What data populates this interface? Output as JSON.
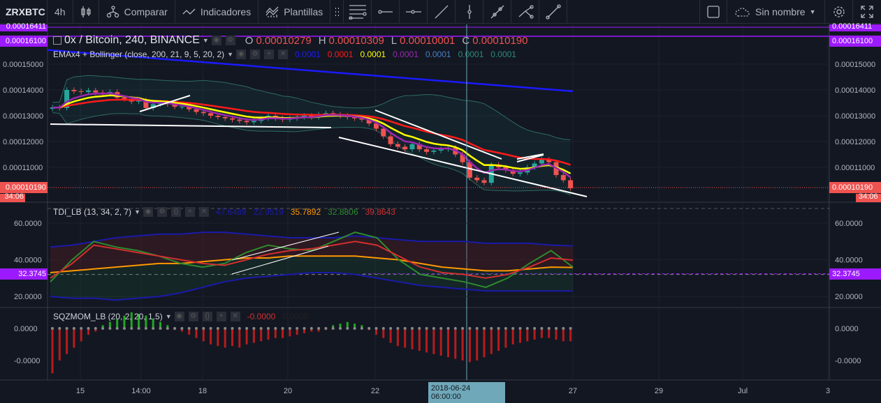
{
  "toolbar": {
    "symbol": "ZRXBTC",
    "interval": "4h",
    "compare": "Comparar",
    "indicators": "Indicadores",
    "templates": "Plantillas",
    "layout_name": "Sin nombre"
  },
  "main_legend": {
    "title": "0x / Bitcoin, 240, BINANCE",
    "o_label": "O",
    "o": "0.00010279",
    "h_label": "H",
    "h": "0.00010309",
    "l_label": "L",
    "l": "0.00010001",
    "c_label": "C",
    "c": "0.00010190",
    "ema_title": "EMAx4 + Bollinger (close, 200, 21, 9, 5, 20, 2)",
    "ema_values": [
      "0.0001",
      "0.0001",
      "0.0001",
      "0.0001",
      "0.0001",
      "0.0001",
      "0.0001"
    ]
  },
  "tdi_legend": {
    "title": "TDI_LB (13, 34, 2, 7)",
    "values": [
      "47.6489",
      "22.9519",
      "35.7892",
      "32.8806",
      "39.8643"
    ]
  },
  "sqz_legend": {
    "title": "SQZMOM_LB (20, 2, 20, 1.5)",
    "values": [
      "-0.0000",
      "0.0000"
    ]
  },
  "price_axis": {
    "ticks": [
      "0.00015000",
      "0.00014000",
      "0.00013000",
      "0.00012000",
      "0.00011000"
    ],
    "high_label": "0.00016411",
    "marker_label": "0.00016100",
    "last_price": "0.00010190",
    "countdown": "34:06"
  },
  "tdi_axis": {
    "ticks": [
      "60.0000",
      "40.0000",
      "20.0000"
    ],
    "marker": "32.3745"
  },
  "sqz_axis": {
    "ticks": [
      "0.0000",
      "-0.0000"
    ]
  },
  "time_axis": {
    "ticks": [
      "15",
      "14:00",
      "18",
      "20",
      "22",
      "27",
      "29",
      "Jul",
      "3"
    ],
    "crosshair": "2018-06-24 06:00:00"
  },
  "colors": {
    "up": "#26a69a",
    "down": "#ef5350",
    "ema200": "#1a1aff",
    "ema21": "#ff1a1a",
    "ema9": "#ffff00",
    "ema5": "#9c27b0",
    "marker": "#9c1aff"
  },
  "chart_data": {
    "type": "candlestick",
    "unit": "1e-4 BTC",
    "closes": [
      1.332,
      1.33,
      1.4,
      1.395,
      1.392,
      1.398,
      1.39,
      1.385,
      1.392,
      1.37,
      1.365,
      1.355,
      1.36,
      1.33,
      1.345,
      1.35,
      1.345,
      1.335,
      1.335,
      1.325,
      1.315,
      1.31,
      1.3,
      1.295,
      1.29,
      1.285,
      1.28,
      1.275,
      1.28,
      1.29,
      1.3,
      1.29,
      1.285,
      1.29,
      1.295,
      1.3,
      1.295,
      1.305,
      1.31,
      1.305,
      1.3,
      1.295,
      1.29,
      1.285,
      1.27,
      1.25,
      1.22,
      1.19,
      1.18,
      1.17,
      1.19,
      1.17,
      1.16,
      1.165,
      1.17,
      1.175,
      1.15,
      1.12,
      1.06,
      1.05,
      1.04,
      1.11,
      1.1,
      1.09,
      1.075,
      1.08,
      1.1,
      1.115,
      1.13,
      1.12,
      1.07,
      1.05,
      1.019
    ],
    "ema200": [
      1.555,
      1.395
    ],
    "ylim": [
      0.98,
      1.66
    ],
    "tdi": {
      "ylim": [
        14,
        68
      ],
      "price": [
        28,
        40,
        50,
        47,
        45,
        42,
        38,
        36,
        38,
        44,
        48,
        46,
        45,
        50,
        55,
        52,
        40,
        32,
        30,
        28,
        25,
        30,
        38,
        45,
        36
      ],
      "signal": [
        30,
        38,
        48,
        46,
        44,
        42,
        40,
        38,
        37,
        40,
        43,
        45,
        46,
        48,
        50,
        48,
        42,
        36,
        33,
        32,
        30,
        32,
        36,
        41,
        39.8
      ],
      "mid": [
        33,
        34,
        35,
        36,
        37,
        38,
        38,
        39,
        40,
        41,
        41,
        42,
        42,
        42,
        42,
        41,
        40,
        38,
        36,
        35,
        34,
        34,
        35,
        36,
        35.8
      ],
      "upper": [
        47,
        48,
        50,
        52,
        53,
        54,
        54,
        55,
        55,
        54,
        53,
        52,
        52,
        52,
        53,
        52,
        51,
        50,
        50,
        50,
        49,
        49,
        49,
        48,
        47.6
      ],
      "lower": [
        20,
        19,
        19,
        18,
        19,
        20,
        22,
        25,
        28,
        30,
        31,
        32,
        33,
        33,
        32,
        30,
        28,
        26,
        25,
        24,
        23,
        23,
        23,
        23,
        23
      ]
    },
    "sqz": [
      -1.4,
      -1.0,
      -0.8,
      -0.6,
      -0.4,
      -0.2,
      -0.1,
      0.1,
      0.2,
      0.3,
      0.4,
      0.5,
      0.45,
      0.4,
      0.3,
      0.2,
      0.1,
      -0.05,
      -0.1,
      -0.2,
      -0.3,
      -0.4,
      -0.5,
      -0.55,
      -0.6,
      -0.55,
      -0.6,
      -0.5,
      -0.45,
      -0.4,
      -0.35,
      -0.3,
      -0.3,
      -0.25,
      -0.2,
      -0.15,
      -0.1,
      -0.1,
      -0.05,
      0.1,
      0.15,
      0.2,
      0.15,
      0.1,
      -0.05,
      -0.2,
      -0.3,
      -0.45,
      -0.55,
      -0.6,
      -0.65,
      -0.7,
      -0.75,
      -0.8,
      -0.85,
      -0.9,
      -0.95,
      -1.0,
      -1.05,
      -1.0,
      -0.9,
      -0.8,
      -0.7,
      -0.6,
      -0.5,
      -0.45,
      -0.4,
      -0.35,
      -0.3,
      -0.3,
      -0.35,
      -0.4,
      -0.4
    ]
  }
}
